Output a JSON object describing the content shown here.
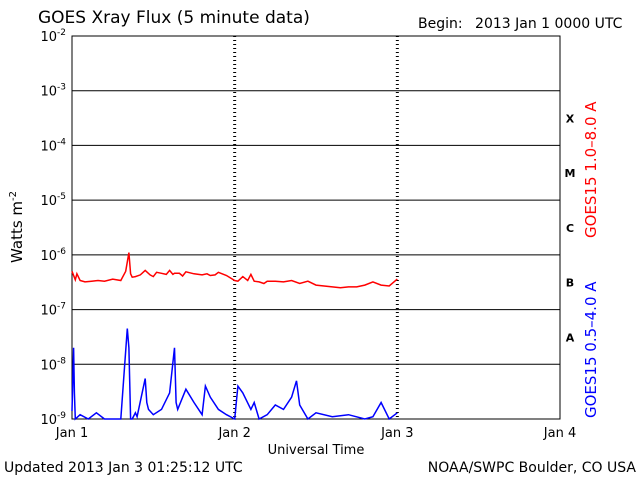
{
  "header": {
    "title": "GOES Xray Flux (5 minute data)",
    "begin_label": "Begin:",
    "begin_value": "2013 Jan 1 0000 UTC"
  },
  "footer": {
    "updated": "Updated 2013 Jan  3 01:25:12 UTC",
    "source": "NOAA/SWPC Boulder, CO USA"
  },
  "chart_data": {
    "type": "line",
    "title": "GOES Xray Flux (5 minute data)",
    "xlabel": "Universal Time",
    "ylabel": "Watts m",
    "ylabel_sup": "-2",
    "y_scale": "log",
    "ylim": [
      1e-09,
      0.01
    ],
    "xlim_days": [
      0,
      3
    ],
    "x_ticks": [
      "Jan 1",
      "Jan 2",
      "Jan 3",
      "Jan 4"
    ],
    "y_ticks": [
      {
        "base": "10",
        "exp": "-2"
      },
      {
        "base": "10",
        "exp": "-3"
      },
      {
        "base": "10",
        "exp": "-4"
      },
      {
        "base": "10",
        "exp": "-5"
      },
      {
        "base": "10",
        "exp": "-6"
      },
      {
        "base": "10",
        "exp": "-7"
      },
      {
        "base": "10",
        "exp": "-8"
      },
      {
        "base": "10",
        "exp": "-9"
      }
    ],
    "flare_classes": [
      "X",
      "M",
      "C",
      "B",
      "A"
    ],
    "grid": true,
    "series": [
      {
        "name": "GOES15 1.0–8.0 A",
        "color": "#ff0000",
        "t": [
          0.0,
          0.02,
          0.03,
          0.05,
          0.08,
          0.12,
          0.16,
          0.2,
          0.25,
          0.3,
          0.33,
          0.35,
          0.36,
          0.37,
          0.39,
          0.42,
          0.45,
          0.48,
          0.5,
          0.52,
          0.55,
          0.58,
          0.6,
          0.62,
          0.63,
          0.66,
          0.68,
          0.7,
          0.75,
          0.8,
          0.83,
          0.85,
          0.88,
          0.9,
          0.95,
          1.0,
          1.02,
          1.05,
          1.08,
          1.1,
          1.12,
          1.15,
          1.18,
          1.2,
          1.25,
          1.3,
          1.35,
          1.4,
          1.45,
          1.5,
          1.55,
          1.6,
          1.65,
          1.7,
          1.75,
          1.8,
          1.85,
          1.9,
          1.95,
          2.0
        ],
        "y": [
          5e-07,
          3.5e-07,
          4.5e-07,
          3.4e-07,
          3.2e-07,
          3.3e-07,
          3.4e-07,
          3.3e-07,
          3.6e-07,
          3.4e-07,
          5e-07,
          1.1e-06,
          4.5e-07,
          3.9e-07,
          4e-07,
          4.3e-07,
          5.2e-07,
          4.3e-07,
          4e-07,
          4.8e-07,
          4.6e-07,
          4.4e-07,
          5.2e-07,
          4.4e-07,
          4.6e-07,
          4.6e-07,
          4.1e-07,
          4.9e-07,
          4.5e-07,
          4.3e-07,
          4.5e-07,
          4.2e-07,
          4.3e-07,
          4.8e-07,
          4.2e-07,
          3.4e-07,
          3.3e-07,
          4e-07,
          3.4e-07,
          4.4e-07,
          3.3e-07,
          3.2e-07,
          3e-07,
          3.3e-07,
          3.3e-07,
          3.2e-07,
          3.4e-07,
          3e-07,
          3.3e-07,
          2.8e-07,
          2.7e-07,
          2.6e-07,
          2.5e-07,
          2.6e-07,
          2.6e-07,
          2.8e-07,
          3.2e-07,
          2.8e-07,
          2.7e-07,
          3.6e-07
        ]
      },
      {
        "name": "GOES15 0.5–4.0 A",
        "color": "#0000ff",
        "t": [
          0.0,
          0.01,
          0.015,
          0.02,
          0.05,
          0.1,
          0.15,
          0.2,
          0.3,
          0.34,
          0.35,
          0.36,
          0.37,
          0.39,
          0.4,
          0.45,
          0.46,
          0.47,
          0.5,
          0.55,
          0.6,
          0.63,
          0.64,
          0.65,
          0.7,
          0.75,
          0.8,
          0.82,
          0.85,
          0.9,
          0.95,
          1.0,
          1.02,
          1.05,
          1.1,
          1.12,
          1.15,
          1.2,
          1.25,
          1.3,
          1.35,
          1.38,
          1.4,
          1.45,
          1.5,
          1.6,
          1.7,
          1.8,
          1.85,
          1.9,
          1.95,
          2.0
        ],
        "y": [
          1.4e-09,
          2e-08,
          3e-09,
          1e-09,
          1.2e-09,
          1e-09,
          1.3e-09,
          1e-09,
          1e-09,
          4.5e-08,
          2e-08,
          1e-09,
          1e-09,
          1.3e-09,
          1.1e-09,
          5.5e-09,
          2e-09,
          1.5e-09,
          1.2e-09,
          1.5e-09,
          3e-09,
          2e-08,
          2e-09,
          1.5e-09,
          3.5e-09,
          2e-09,
          1.2e-09,
          4e-09,
          2.5e-09,
          1.5e-09,
          1.2e-09,
          1e-09,
          4e-09,
          3e-09,
          1.5e-09,
          2e-09,
          1e-09,
          1.2e-09,
          1.8e-09,
          1.5e-09,
          2.5e-09,
          5e-09,
          1.8e-09,
          1e-09,
          1.3e-09,
          1.1e-09,
          1.2e-09,
          1e-09,
          1.1e-09,
          2e-09,
          1e-09,
          1.3e-09
        ]
      }
    ]
  }
}
